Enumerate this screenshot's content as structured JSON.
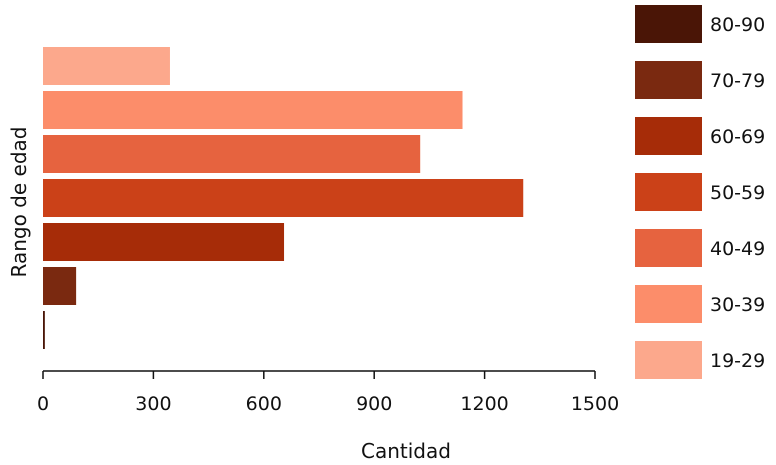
{
  "chart_data": {
    "type": "bar",
    "orientation": "horizontal",
    "xlabel": "Cantidad",
    "ylabel": "Rango de edad",
    "xlim": [
      0,
      1500
    ],
    "xticks": [
      "0",
      "300",
      "600",
      "900",
      "1200",
      "1500"
    ],
    "grid": false,
    "legend_position": "right",
    "categories": [
      "19-29",
      "30-39",
      "40-49",
      "50-59",
      "60-69",
      "70-79",
      "80-90"
    ],
    "values": [
      345,
      1140,
      1025,
      1305,
      655,
      90,
      5
    ],
    "colors": [
      "#FCA88C",
      "#FC8D6A",
      "#E6633F",
      "#CB4118",
      "#A62C08",
      "#7A2910",
      "#4A1506"
    ],
    "legend": [
      "80-90",
      "70-79",
      "60-69",
      "50-59",
      "40-49",
      "30-39",
      "19-29"
    ],
    "legend_colors": [
      "#4A1506",
      "#7A2910",
      "#A62C08",
      "#CB4118",
      "#E6633F",
      "#FC8D6A",
      "#FCA88C"
    ]
  }
}
